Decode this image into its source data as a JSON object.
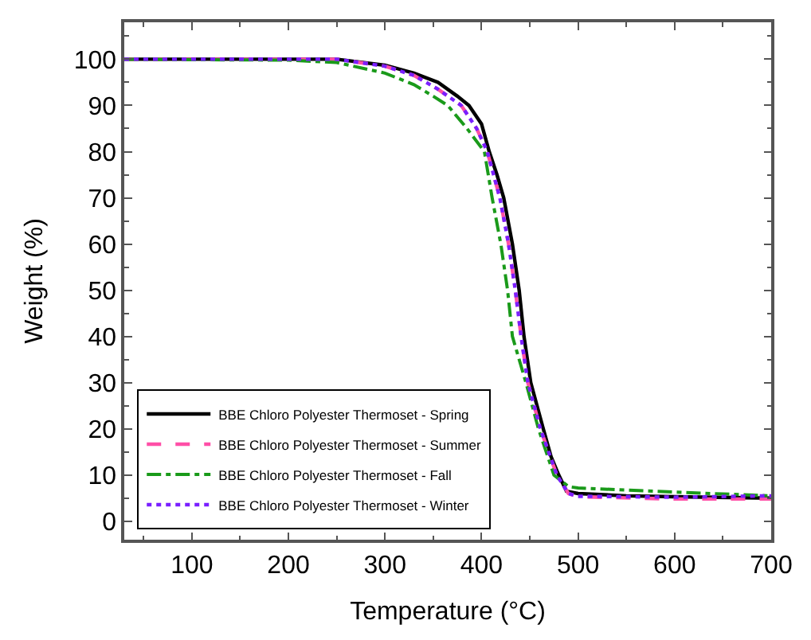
{
  "chart_data": {
    "type": "line",
    "xlabel": "Temperature (°C)",
    "ylabel": "Weight (%)",
    "xlim": [
      30,
      700
    ],
    "xticks": [
      100,
      200,
      300,
      400,
      500,
      600,
      700
    ],
    "ylim": [
      -4,
      108
    ],
    "yticks": [
      0,
      10,
      20,
      30,
      40,
      50,
      60,
      70,
      80,
      90,
      100
    ],
    "legend": "bottom left",
    "marker": "none",
    "series": [
      {
        "name": "BBE Chloro Polyester Thermoset - Spring",
        "color": "#000000",
        "line_style": "solid",
        "x": [
          30,
          250,
          300,
          330,
          355,
          375,
          387,
          400,
          408,
          416,
          423,
          432,
          439,
          444,
          451,
          464,
          472,
          480,
          488,
          500,
          550,
          600,
          700
        ],
        "values": [
          100,
          100,
          98.7,
          97,
          95,
          92,
          90,
          86,
          80,
          75,
          70,
          60,
          50,
          40,
          30,
          20,
          14,
          10,
          6.5,
          6,
          5.5,
          5.3,
          5
        ]
      },
      {
        "name": "BBE Chloro Polyester Thermoset - Summer",
        "color": "#ff4fa7",
        "line_style": "dashed",
        "x": [
          30,
          250,
          300,
          330,
          355,
          379,
          395,
          406,
          419,
          428,
          435,
          441,
          448,
          461,
          478,
          490,
          500,
          600,
          700
        ],
        "values": [
          100,
          100,
          98.5,
          96.5,
          93.5,
          90,
          85,
          80,
          70,
          60,
          50,
          40,
          30,
          20,
          10,
          6,
          5.3,
          4.8,
          4.8
        ]
      },
      {
        "name": "BBE Chloro Polyester Thermoset - Fall",
        "color": "#1a9a1a",
        "line_style": "dashdot",
        "x": [
          30,
          200,
          250,
          300,
          330,
          350,
          365,
          385,
          403,
          411,
          420,
          427,
          432,
          446,
          459,
          475,
          490,
          500,
          600,
          700
        ],
        "values": [
          100,
          99.8,
          99.3,
          97,
          94.5,
          92,
          90,
          85,
          80,
          70,
          60,
          50,
          40,
          30,
          20,
          10,
          7.5,
          7.2,
          6.3,
          5.5
        ]
      },
      {
        "name": "BBE Chloro Polyester Thermoset - Winter",
        "color": "#7a1fff",
        "line_style": "dotted",
        "x": [
          30,
          250,
          300,
          330,
          355,
          379,
          395,
          406,
          419,
          428,
          435,
          441,
          448,
          461,
          478,
          490,
          500,
          600,
          700
        ],
        "values": [
          100,
          100,
          98.5,
          96.5,
          93.5,
          90,
          85,
          80,
          70,
          60,
          50,
          40,
          30,
          20,
          10,
          6,
          5.4,
          5.2,
          5.5
        ]
      }
    ]
  }
}
